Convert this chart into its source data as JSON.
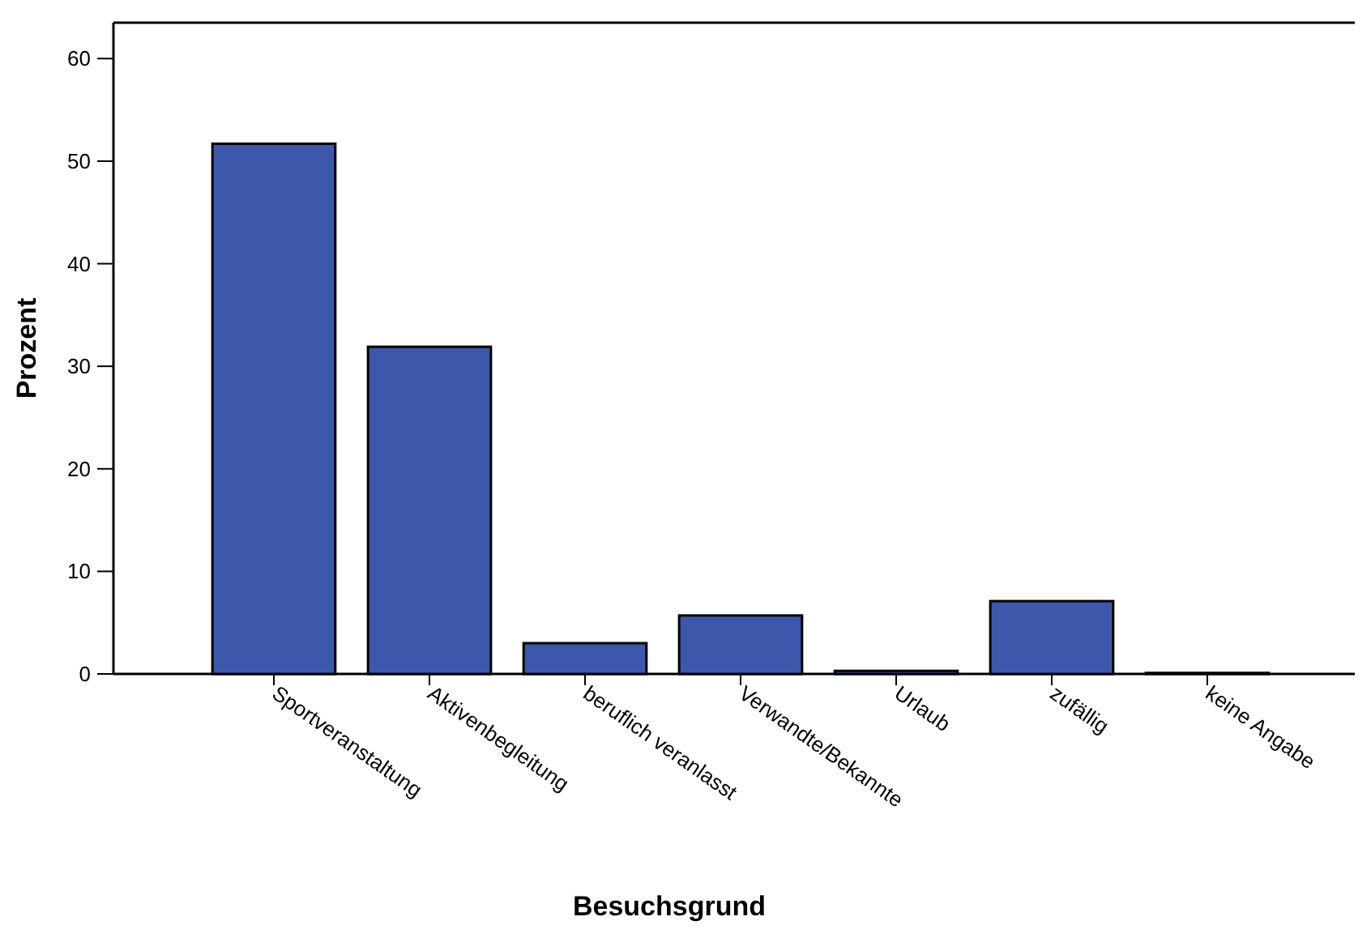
{
  "chart_data": {
    "type": "bar",
    "xlabel": "Besuchsgrund",
    "ylabel": "Prozent",
    "categories": [
      "Sportveranstaltung",
      "Aktivenbegleitung",
      "beruflich veranlasst",
      "Verwandte/Bekannte",
      "Urlaub",
      "zufällig",
      "keine Angabe"
    ],
    "values": [
      51.7,
      31.9,
      3.0,
      5.7,
      0.3,
      7.1,
      0.1
    ],
    "color": "#3d57ab",
    "ylim": [
      0,
      63.5
    ],
    "yticks": [
      0,
      10,
      20,
      30,
      40,
      50,
      60
    ],
    "grid": false
  }
}
